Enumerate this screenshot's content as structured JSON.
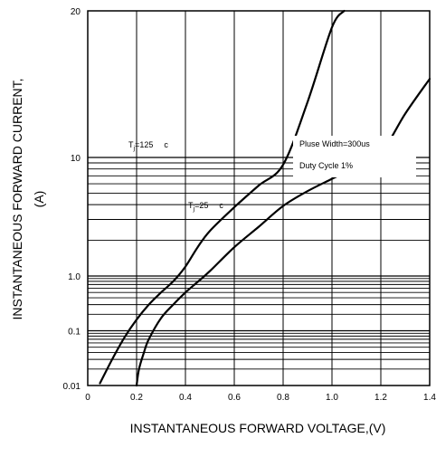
{
  "chart_data": {
    "type": "line",
    "title": "",
    "xlabel": "INSTANTANEOUS FORWARD VOLTAGE,(V)",
    "ylabel_line1": "INSTANTANEOUS FORWARD CURRENT,",
    "ylabel_line2": "(A)",
    "xlim": [
      0,
      1.4
    ],
    "ylim": [
      0.01,
      20
    ],
    "y_scale": "log",
    "grid": true,
    "x_ticks": [
      0,
      0.2,
      0.4,
      0.6,
      0.8,
      1.0,
      1.2,
      1.4
    ],
    "x_tick_labels": [
      "0",
      "0.2",
      "0.4",
      "0.6",
      "0.8",
      "1.0",
      "1.2",
      "1.4"
    ],
    "y_ticks": [
      0.01,
      0.1,
      1.0,
      10,
      20
    ],
    "y_tick_labels": [
      "0.01",
      "0.1",
      "1.0",
      "10",
      "20"
    ],
    "series": [
      {
        "label_main": "T",
        "label_sub": "j",
        "label_rest": "=125",
        "label_unit": "c",
        "x": [
          0.05,
          0.1,
          0.15,
          0.2,
          0.25,
          0.3,
          0.35,
          0.4,
          0.45,
          0.5,
          0.6,
          0.7,
          0.8,
          0.9,
          1.0,
          1.05
        ],
        "y": [
          0.011,
          0.03,
          0.075,
          0.16,
          0.3,
          0.5,
          0.8,
          1.2,
          1.75,
          2.4,
          3.8,
          5.8,
          8.7,
          13,
          18.5,
          21
        ]
      },
      {
        "label_main": "T",
        "label_sub": "j",
        "label_rest": "=25",
        "label_unit": "c",
        "x": [
          0.2,
          0.21,
          0.23,
          0.25,
          0.3,
          0.35,
          0.4,
          0.45,
          0.5,
          0.6,
          0.7,
          0.8,
          0.9,
          1.0,
          1.1,
          1.2,
          1.3,
          1.4
        ],
        "y": [
          0.01,
          0.02,
          0.04,
          0.07,
          0.17,
          0.3,
          0.5,
          0.78,
          1.1,
          1.75,
          2.6,
          3.9,
          5.2,
          6.6,
          8.3,
          10.2,
          12.3,
          14.5
        ]
      }
    ],
    "annotations": [
      "Pluse Width=300us",
      "Duty Cycle 1%"
    ]
  }
}
